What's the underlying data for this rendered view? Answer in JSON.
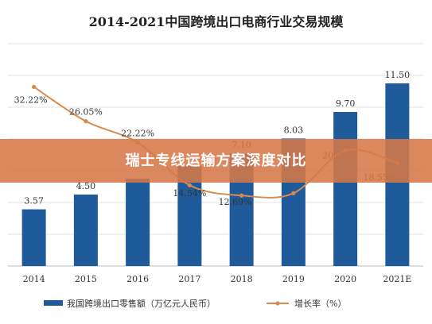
{
  "banner": {
    "text": "瑞士专线运输方案深度对比"
  },
  "colors": {
    "bar": "#1f5b9a",
    "line": "#d98a4e",
    "banner": "#d67848"
  },
  "chart_data": {
    "type": "bar",
    "title": "2014-2021中国跨境出口电商行业交易规模",
    "categories": [
      "2014",
      "2015",
      "2016",
      "2017",
      "2018",
      "2019",
      "2020",
      "2021E"
    ],
    "series": [
      {
        "name": "我国跨境出口零售额（万亿元人民币）",
        "kind": "bar",
        "values": [
          3.57,
          4.5,
          5.5,
          6.3,
          7.1,
          8.03,
          9.7,
          11.5
        ],
        "labels": [
          "3.57",
          "4.50",
          "",
          "",
          "7.10",
          "8.03",
          "9.70",
          "11.50"
        ]
      },
      {
        "name": "增长率（%）",
        "kind": "line",
        "values": [
          32.22,
          26.05,
          22.22,
          14.54,
          12.69,
          13.1,
          20.79,
          18.55
        ],
        "labels": [
          "32.22%",
          "26.05%",
          "22.22%",
          "14.54%",
          "12.69%",
          "",
          "20.79%",
          "18.55%"
        ]
      }
    ],
    "ylim": [
      0,
      14
    ],
    "y2lim": [
      0,
      40
    ],
    "grid": true,
    "legend": "bottom"
  }
}
